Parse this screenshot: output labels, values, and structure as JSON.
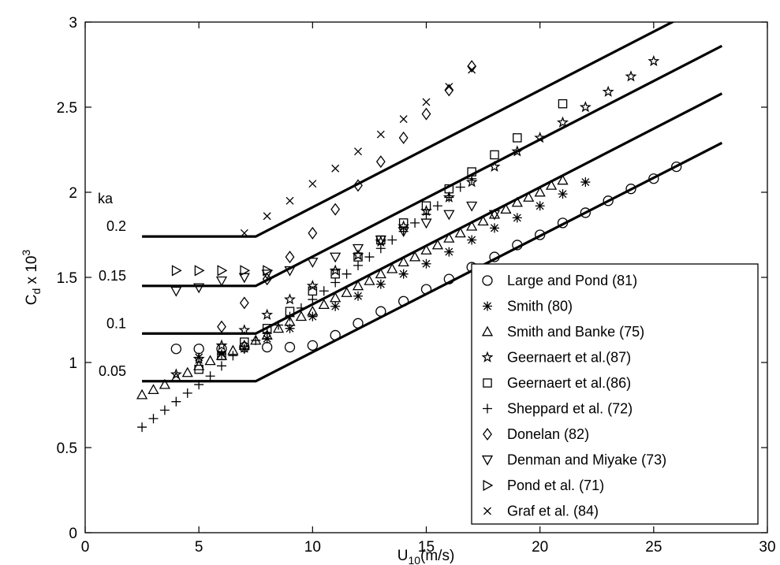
{
  "chart_data": {
    "type": "scatter",
    "xlabel": "U",
    "xlabel_sub": "10",
    "xlabel_unit": "(m/s)",
    "ylabel": "C",
    "ylabel_sub": "d",
    "ylabel_times": " x 10",
    "ylabel_sup": "3",
    "xlim": [
      0,
      30
    ],
    "ylim": [
      0,
      3
    ],
    "xticks": [
      0,
      5,
      10,
      15,
      20,
      25,
      30
    ],
    "yticks": [
      0,
      0.5,
      1,
      1.5,
      2,
      2.5,
      3
    ],
    "xtick_labels": [
      "0",
      "5",
      "10",
      "15",
      "20",
      "25",
      "30"
    ],
    "ytick_labels": [
      "0",
      "0.5",
      "1",
      "1.5",
      "2",
      "2.5",
      "3"
    ],
    "grid": false,
    "legend_position": "bottom-right",
    "ka_header": "ka",
    "lines": [
      {
        "ka": "0.05",
        "x": [
          2.5,
          7.5,
          28
        ],
        "y": [
          0.89,
          0.89,
          2.29
        ]
      },
      {
        "ka": "0.1",
        "x": [
          2.5,
          7.5,
          28
        ],
        "y": [
          1.17,
          1.17,
          2.58
        ]
      },
      {
        "ka": "0.15",
        "x": [
          2.5,
          7.5,
          28
        ],
        "y": [
          1.45,
          1.45,
          2.86
        ]
      },
      {
        "ka": "0.2",
        "x": [
          2.5,
          7.5,
          28
        ],
        "y": [
          1.74,
          1.74,
          3.15
        ]
      }
    ],
    "series": [
      {
        "name": "Large and Pond (81)",
        "marker": "circle",
        "x": [
          4,
          5,
          6,
          7,
          8,
          9,
          10,
          11,
          12,
          13,
          14,
          15,
          16,
          17,
          18,
          19,
          20,
          21,
          22,
          23,
          24,
          25,
          26
        ],
        "y": [
          1.08,
          1.08,
          1.08,
          1.09,
          1.09,
          1.09,
          1.1,
          1.16,
          1.23,
          1.3,
          1.36,
          1.43,
          1.49,
          1.56,
          1.62,
          1.69,
          1.75,
          1.82,
          1.88,
          1.95,
          2.02,
          2.08,
          2.15
        ]
      },
      {
        "name": "Smith (80)",
        "marker": "asterisk",
        "x": [
          5,
          6,
          7,
          8,
          9,
          10,
          11,
          12,
          13,
          14,
          15,
          16,
          17,
          18,
          19,
          20,
          21,
          22
        ],
        "y": [
          1.03,
          1.05,
          1.08,
          1.14,
          1.2,
          1.27,
          1.33,
          1.39,
          1.46,
          1.52,
          1.58,
          1.65,
          1.72,
          1.79,
          1.85,
          1.92,
          1.99,
          2.06
        ]
      },
      {
        "name": "Smith and Banke (75)",
        "marker": "triangle-up",
        "x": [
          2.5,
          3,
          3.5,
          4,
          4.5,
          5,
          5.5,
          6,
          6.5,
          7,
          7.5,
          8,
          8.5,
          9,
          9.5,
          10,
          10.5,
          11,
          11.5,
          12,
          12.5,
          13,
          13.5,
          14,
          14.5,
          15,
          15.5,
          16,
          16.5,
          17,
          17.5,
          18,
          18.5,
          19,
          19.5,
          20,
          20.5,
          21
        ],
        "y": [
          0.81,
          0.84,
          0.87,
          0.91,
          0.94,
          0.98,
          1.01,
          1.04,
          1.07,
          1.1,
          1.13,
          1.16,
          1.2,
          1.24,
          1.27,
          1.3,
          1.34,
          1.38,
          1.41,
          1.45,
          1.48,
          1.52,
          1.55,
          1.59,
          1.62,
          1.66,
          1.69,
          1.73,
          1.76,
          1.8,
          1.83,
          1.87,
          1.9,
          1.94,
          1.97,
          2.0,
          2.04,
          2.07
        ]
      },
      {
        "name": "Geernaert et al.(87)",
        "marker": "star",
        "x": [
          4,
          5,
          6,
          7,
          8,
          9,
          10,
          11,
          12,
          13,
          14,
          15,
          16,
          17,
          18,
          19,
          20,
          21,
          22,
          23,
          24,
          25
        ],
        "y": [
          0.93,
          1.02,
          1.1,
          1.19,
          1.28,
          1.37,
          1.45,
          1.54,
          1.63,
          1.71,
          1.8,
          1.89,
          1.97,
          2.06,
          2.15,
          2.24,
          2.32,
          2.41,
          2.5,
          2.59,
          2.68,
          2.77
        ]
      },
      {
        "name": "Geernaert et al.(86)",
        "marker": "square",
        "x": [
          5,
          6,
          7,
          8,
          9,
          10,
          11,
          12,
          13,
          14,
          15,
          16,
          17,
          18,
          19,
          21
        ],
        "y": [
          0.96,
          1.04,
          1.12,
          1.2,
          1.3,
          1.42,
          1.52,
          1.62,
          1.72,
          1.82,
          1.92,
          2.02,
          2.12,
          2.22,
          2.32,
          2.52
        ]
      },
      {
        "name": "Sheppard et al. (72)",
        "marker": "plus",
        "x": [
          2.5,
          3,
          3.5,
          4,
          4.5,
          5,
          5.5,
          6,
          6.5,
          7,
          7.5,
          8,
          8.5,
          9,
          9.5,
          10,
          10.5,
          11,
          11.5,
          12,
          12.5,
          13,
          13.5,
          14,
          14.5,
          15,
          15.5,
          16,
          16.5,
          17
        ],
        "y": [
          0.62,
          0.67,
          0.72,
          0.77,
          0.82,
          0.87,
          0.92,
          0.98,
          1.04,
          1.08,
          1.13,
          1.17,
          1.22,
          1.27,
          1.32,
          1.37,
          1.42,
          1.47,
          1.52,
          1.57,
          1.62,
          1.67,
          1.72,
          1.77,
          1.82,
          1.87,
          1.92,
          1.97,
          2.03,
          2.08
        ]
      },
      {
        "name": "Donelan (82)",
        "marker": "diamond",
        "x": [
          6,
          7,
          8,
          9,
          10,
          11,
          12,
          13,
          14,
          15,
          16,
          17
        ],
        "y": [
          1.21,
          1.35,
          1.49,
          1.62,
          1.76,
          1.9,
          2.04,
          2.18,
          2.32,
          2.46,
          2.6,
          2.74
        ]
      },
      {
        "name": "Denman and Miyake (73)",
        "marker": "triangle-down",
        "x": [
          4,
          5,
          6,
          7,
          8,
          9,
          10,
          11,
          12,
          13,
          14,
          15,
          16,
          17,
          18
        ],
        "y": [
          1.42,
          1.44,
          1.48,
          1.5,
          1.52,
          1.54,
          1.59,
          1.62,
          1.67,
          1.72,
          1.77,
          1.82,
          1.87,
          1.92,
          1.87
        ]
      },
      {
        "name": "Pond et al. (71)",
        "marker": "triangle-right",
        "x": [
          4,
          5,
          6,
          7,
          8
        ],
        "y": [
          1.54,
          1.54,
          1.54,
          1.54,
          1.54
        ]
      },
      {
        "name": "Graf et al. (84)",
        "marker": "cross",
        "x": [
          7,
          8,
          9,
          10,
          11,
          12,
          13,
          14,
          15,
          16,
          17
        ],
        "y": [
          1.76,
          1.86,
          1.95,
          2.05,
          2.14,
          2.24,
          2.34,
          2.43,
          2.53,
          2.62,
          2.72
        ]
      }
    ]
  }
}
